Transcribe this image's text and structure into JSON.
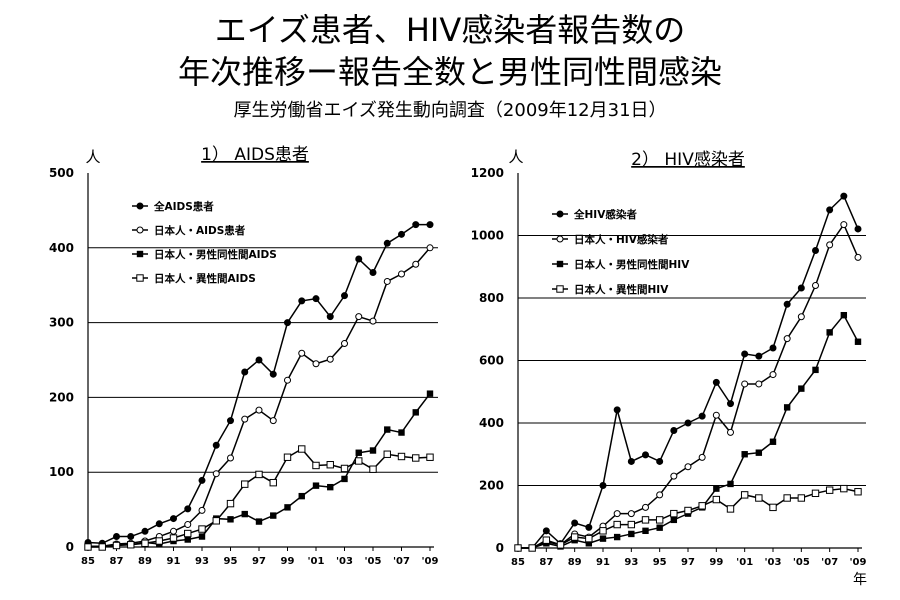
{
  "page": {
    "title_line1": "エイズ患者、HIV感染者報告数の",
    "title_line2": "年次推移ー報告全数と男性同性間感染",
    "subtitle": "厚生労働省エイズ発生動向調査（2009年12月31日）"
  },
  "colors": {
    "line": "#000000",
    "grid": "#000000",
    "background": "#ffffff"
  },
  "chart_data": [
    {
      "type": "line",
      "title": "1）  AIDS患者",
      "ylabel": "人",
      "xlabel": "",
      "ylim": [
        0,
        500
      ],
      "yticks": [
        0,
        100,
        200,
        300,
        400,
        500
      ],
      "x": [
        1985,
        1986,
        1987,
        1988,
        1989,
        1990,
        1991,
        1992,
        1993,
        1994,
        1995,
        1996,
        1997,
        1998,
        1999,
        2000,
        2001,
        2002,
        2003,
        2004,
        2005,
        2006,
        2007,
        2008,
        2009
      ],
      "xtick_labels": [
        "85",
        "87",
        "89",
        "91",
        "93",
        "95",
        "97",
        "99",
        "'01",
        "'03",
        "'05",
        "'07",
        "'09"
      ],
      "legend_position": "top-left",
      "series": [
        {
          "name": "全AIDS患者",
          "marker": "filled-circle",
          "values": [
            6,
            5,
            14,
            14,
            21,
            31,
            38,
            51,
            89,
            136,
            169,
            234,
            250,
            231,
            300,
            329,
            332,
            308,
            336,
            385,
            367,
            406,
            418,
            431,
            431
          ]
        },
        {
          "name": "日本人・AIDS患者",
          "marker": "open-circle",
          "values": [
            1,
            1,
            4,
            5,
            8,
            14,
            21,
            30,
            49,
            98,
            119,
            171,
            183,
            169,
            223,
            259,
            245,
            251,
            272,
            308,
            302,
            355,
            365,
            378,
            400
          ]
        },
        {
          "name": "日本人・男性同性間AIDS",
          "marker": "filled-square",
          "values": [
            1,
            1,
            3,
            3,
            6,
            4,
            8,
            10,
            14,
            38,
            37,
            44,
            34,
            42,
            53,
            68,
            82,
            80,
            91,
            126,
            129,
            157,
            153,
            180,
            205
          ]
        },
        {
          "name": "日本人・異性間AIDS",
          "marker": "open-square",
          "values": [
            0,
            0,
            2,
            3,
            5,
            8,
            12,
            18,
            24,
            35,
            58,
            84,
            97,
            86,
            120,
            131,
            109,
            110,
            105,
            115,
            104,
            124,
            121,
            119,
            120
          ]
        }
      ]
    },
    {
      "type": "line",
      "title": "2）  HIV感染者",
      "ylabel": "人",
      "xlabel": "年",
      "ylim": [
        0,
        1200
      ],
      "yticks": [
        0,
        200,
        400,
        600,
        800,
        1000,
        1200
      ],
      "x": [
        1985,
        1986,
        1987,
        1988,
        1989,
        1990,
        1991,
        1992,
        1993,
        1994,
        1995,
        1996,
        1997,
        1998,
        1999,
        2000,
        2001,
        2002,
        2003,
        2004,
        2005,
        2006,
        2007,
        2008,
        2009
      ],
      "xtick_labels": [
        "85",
        "87",
        "89",
        "91",
        "93",
        "95",
        "97",
        "99",
        "'01",
        "'03",
        "'05",
        "'07",
        "'09"
      ],
      "legend_position": "top-left",
      "series": [
        {
          "name": "全HIV感染者",
          "marker": "filled-circle",
          "values": [
            0,
            0,
            55,
            14,
            80,
            66,
            200,
            442,
            277,
            298,
            277,
            376,
            400,
            422,
            530,
            462,
            621,
            614,
            640,
            780,
            832,
            952,
            1082,
            1126,
            1021
          ]
        },
        {
          "name": "日本人・HIV感染者",
          "marker": "open-circle",
          "values": [
            0,
            0,
            20,
            10,
            45,
            35,
            70,
            110,
            110,
            130,
            170,
            230,
            260,
            290,
            425,
            370,
            525,
            525,
            555,
            670,
            740,
            840,
            970,
            1035,
            930
          ]
        },
        {
          "name": "日本人・男性同性間HIV",
          "marker": "filled-square",
          "values": [
            0,
            0,
            15,
            5,
            25,
            15,
            30,
            35,
            45,
            55,
            65,
            90,
            110,
            130,
            190,
            205,
            300,
            305,
            340,
            450,
            510,
            570,
            690,
            745,
            660
          ]
        },
        {
          "name": "日本人・異性間HIV",
          "marker": "open-square",
          "values": [
            0,
            0,
            25,
            10,
            35,
            30,
            55,
            75,
            75,
            90,
            90,
            110,
            120,
            135,
            155,
            125,
            170,
            160,
            130,
            160,
            160,
            175,
            185,
            190,
            180
          ]
        }
      ]
    }
  ]
}
